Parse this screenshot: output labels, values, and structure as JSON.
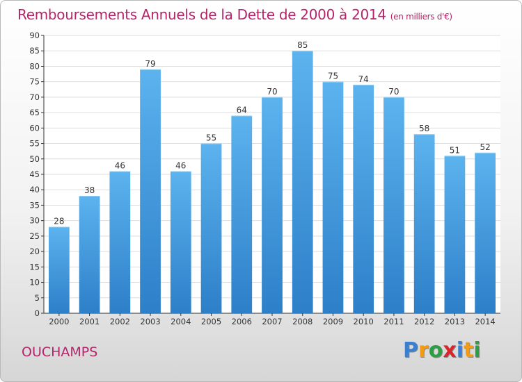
{
  "chart_data": {
    "type": "bar",
    "title": "Remboursements Annuels de la Dette de 2000 à 2014",
    "unit_note": "(en milliers d'€)",
    "categories": [
      "2000",
      "2001",
      "2002",
      "2003",
      "2004",
      "2005",
      "2006",
      "2007",
      "2008",
      "2009",
      "2010",
      "2011",
      "2012",
      "2013",
      "2014"
    ],
    "values": [
      28,
      38,
      46,
      79,
      46,
      55,
      64,
      70,
      85,
      75,
      74,
      70,
      58,
      51,
      52
    ],
    "ylim": [
      0,
      90
    ],
    "yticks": [
      0,
      5,
      10,
      15,
      20,
      25,
      30,
      35,
      40,
      45,
      50,
      55,
      60,
      65,
      70,
      75,
      80,
      85,
      90
    ],
    "grid": true,
    "bar_color": "#4a9fe0"
  },
  "commune": "OUCHAMPS",
  "brand": {
    "letters": [
      "P",
      "r",
      "o",
      "x",
      "i",
      "t",
      "i"
    ],
    "colors": [
      "#3a7fd0",
      "#f39c12",
      "#2e9e44",
      "#d8262d",
      "#3a7fd0",
      "#f39c12",
      "#2e9e44"
    ]
  },
  "colors": {
    "title": "#b5246a",
    "axis": "#333333",
    "grid": "#dddddd"
  }
}
